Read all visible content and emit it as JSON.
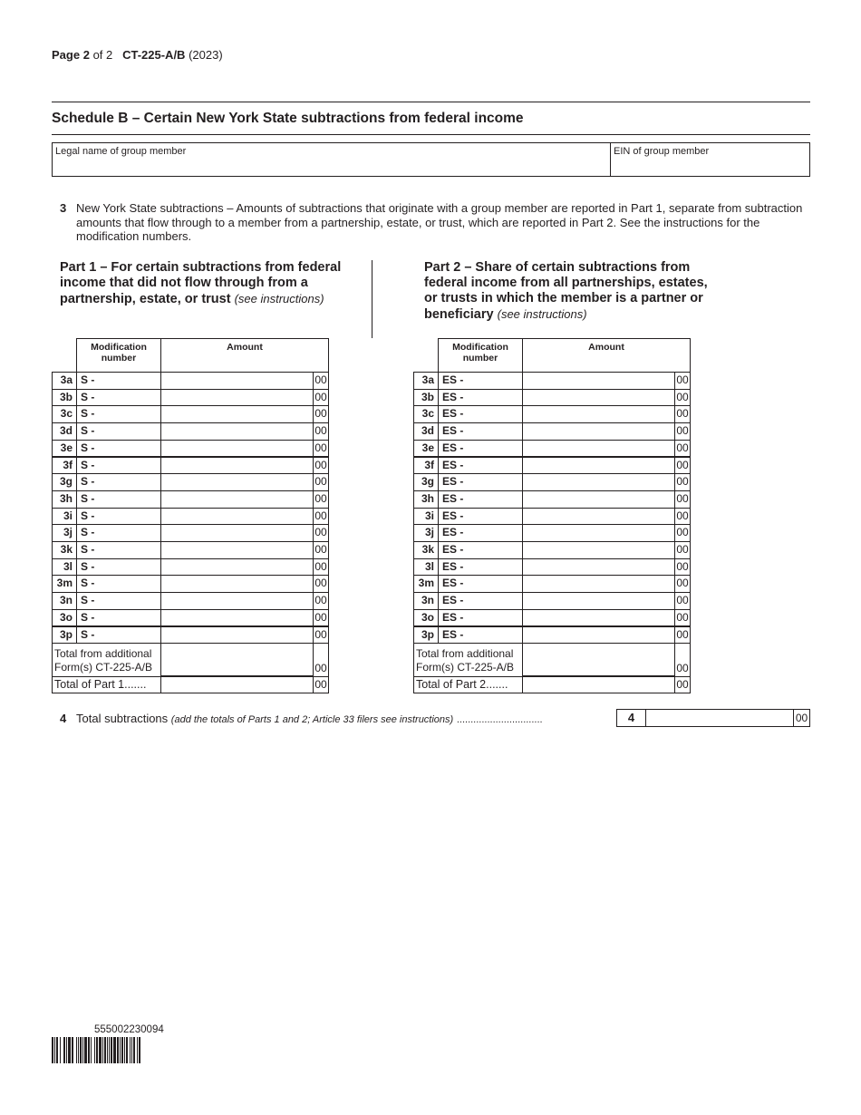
{
  "header": {
    "page_label": "Page",
    "page_num": "2",
    "of_label": "of 2",
    "form": "CT-225-A/B",
    "year": "(2023)"
  },
  "schedule_title": "Schedule B – Certain New York State subtractions from federal income",
  "fields": {
    "legal_name_label": "Legal name of group member",
    "ein_label": "EIN of group member",
    "legal_name_value": "",
    "ein_value": ""
  },
  "line3": {
    "num": "3",
    "text": "New York State subtractions – Amounts of subtractions that originate with a group member are reported in Part 1, separate from subtraction amounts that flow through to a member from a partnership, estate, or trust, which are reported in Part 2. See the instructions for the modification numbers."
  },
  "part1": {
    "title": "Part 1 – For certain subtractions from federal income that did not flow through from a partnership, estate, or trust",
    "note": "(see instructions)",
    "prefix": "S -",
    "total_label": "Total of Part 1......."
  },
  "part2": {
    "title": "Part 2 – Share of certain subtractions from federal income from all partnerships, estates, or trusts in which the member is a partner or beneficiary",
    "note": "(see instructions)",
    "prefix": "ES -",
    "total_label": "Total of Part 2......."
  },
  "table": {
    "mod_header": "Modification number",
    "amount_header": "Amount",
    "cents": "00",
    "additional_label": "Total from additional Form(s) CT-225-A/B",
    "lines": [
      "3a",
      "3b",
      "3c",
      "3d",
      "3e",
      "3f",
      "3g",
      "3h",
      "3i",
      "3j",
      "3k",
      "3l",
      "3m",
      "3n",
      "3o",
      "3p"
    ]
  },
  "line4": {
    "num": "4",
    "label": "Total subtractions",
    "note": "(add the totals of Parts 1 and 2; Article 33 filers see instructions)",
    "dots": "...............................",
    "box": "4",
    "cents": "00"
  },
  "barcode": {
    "number": "555002230094"
  }
}
